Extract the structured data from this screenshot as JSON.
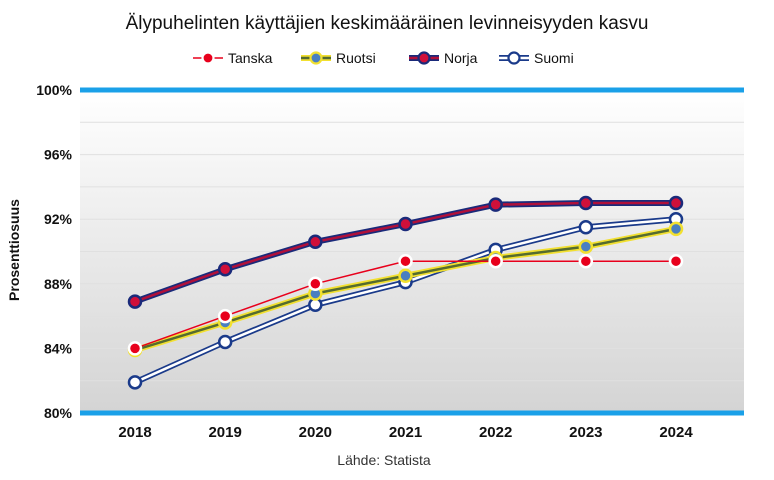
{
  "chart_data": {
    "type": "line",
    "title": "Älypuhelinten käyttäjien keskimääräinen levinneisyyden kasvu",
    "ylabel": "Prosenttiosuus",
    "xlabel": "",
    "source": "Lähde: Statista",
    "x": [
      "2018",
      "2019",
      "2020",
      "2021",
      "2022",
      "2023",
      "2024"
    ],
    "ylim": [
      80,
      100
    ],
    "yticks": [
      80,
      84,
      88,
      92,
      96,
      100
    ],
    "ytick_labels": [
      "80%",
      "84%",
      "88%",
      "92%",
      "96%",
      "100%"
    ],
    "legend_position": "top",
    "grid": true,
    "series": [
      {
        "name": "Tanska",
        "values": [
          84.0,
          86.0,
          88.0,
          89.4,
          89.4,
          89.4,
          89.4
        ],
        "line_color": "#e8001c",
        "marker_fill": "#e8001c",
        "marker_stroke": "#ffffff",
        "style": "thin"
      },
      {
        "name": "Ruotsi",
        "values": [
          83.9,
          85.6,
          87.4,
          88.5,
          89.6,
          90.3,
          91.4
        ],
        "line_color": "#556b2f",
        "outline_color": "#f2e030",
        "marker_fill": "#4a7fc1",
        "marker_stroke": "#f2e030",
        "style": "double"
      },
      {
        "name": "Norja",
        "values": [
          86.9,
          88.9,
          90.6,
          91.7,
          92.9,
          93.0,
          93.0
        ],
        "line_color": "#b0103a",
        "outline_color": "#1a2a7a",
        "marker_fill": "#d0103a",
        "marker_stroke": "#1a2a7a",
        "style": "double"
      },
      {
        "name": "Suomi",
        "values": [
          81.9,
          84.4,
          86.7,
          88.1,
          90.1,
          91.5,
          92.0
        ],
        "line_color": "#ffffff",
        "outline_color": "#1a3a8a",
        "marker_fill": "#ffffff",
        "marker_stroke": "#1a3a8a",
        "style": "double"
      }
    ],
    "colors": {
      "boundary_line": "#1aa0e8",
      "grid": "#e0e0e0"
    }
  }
}
